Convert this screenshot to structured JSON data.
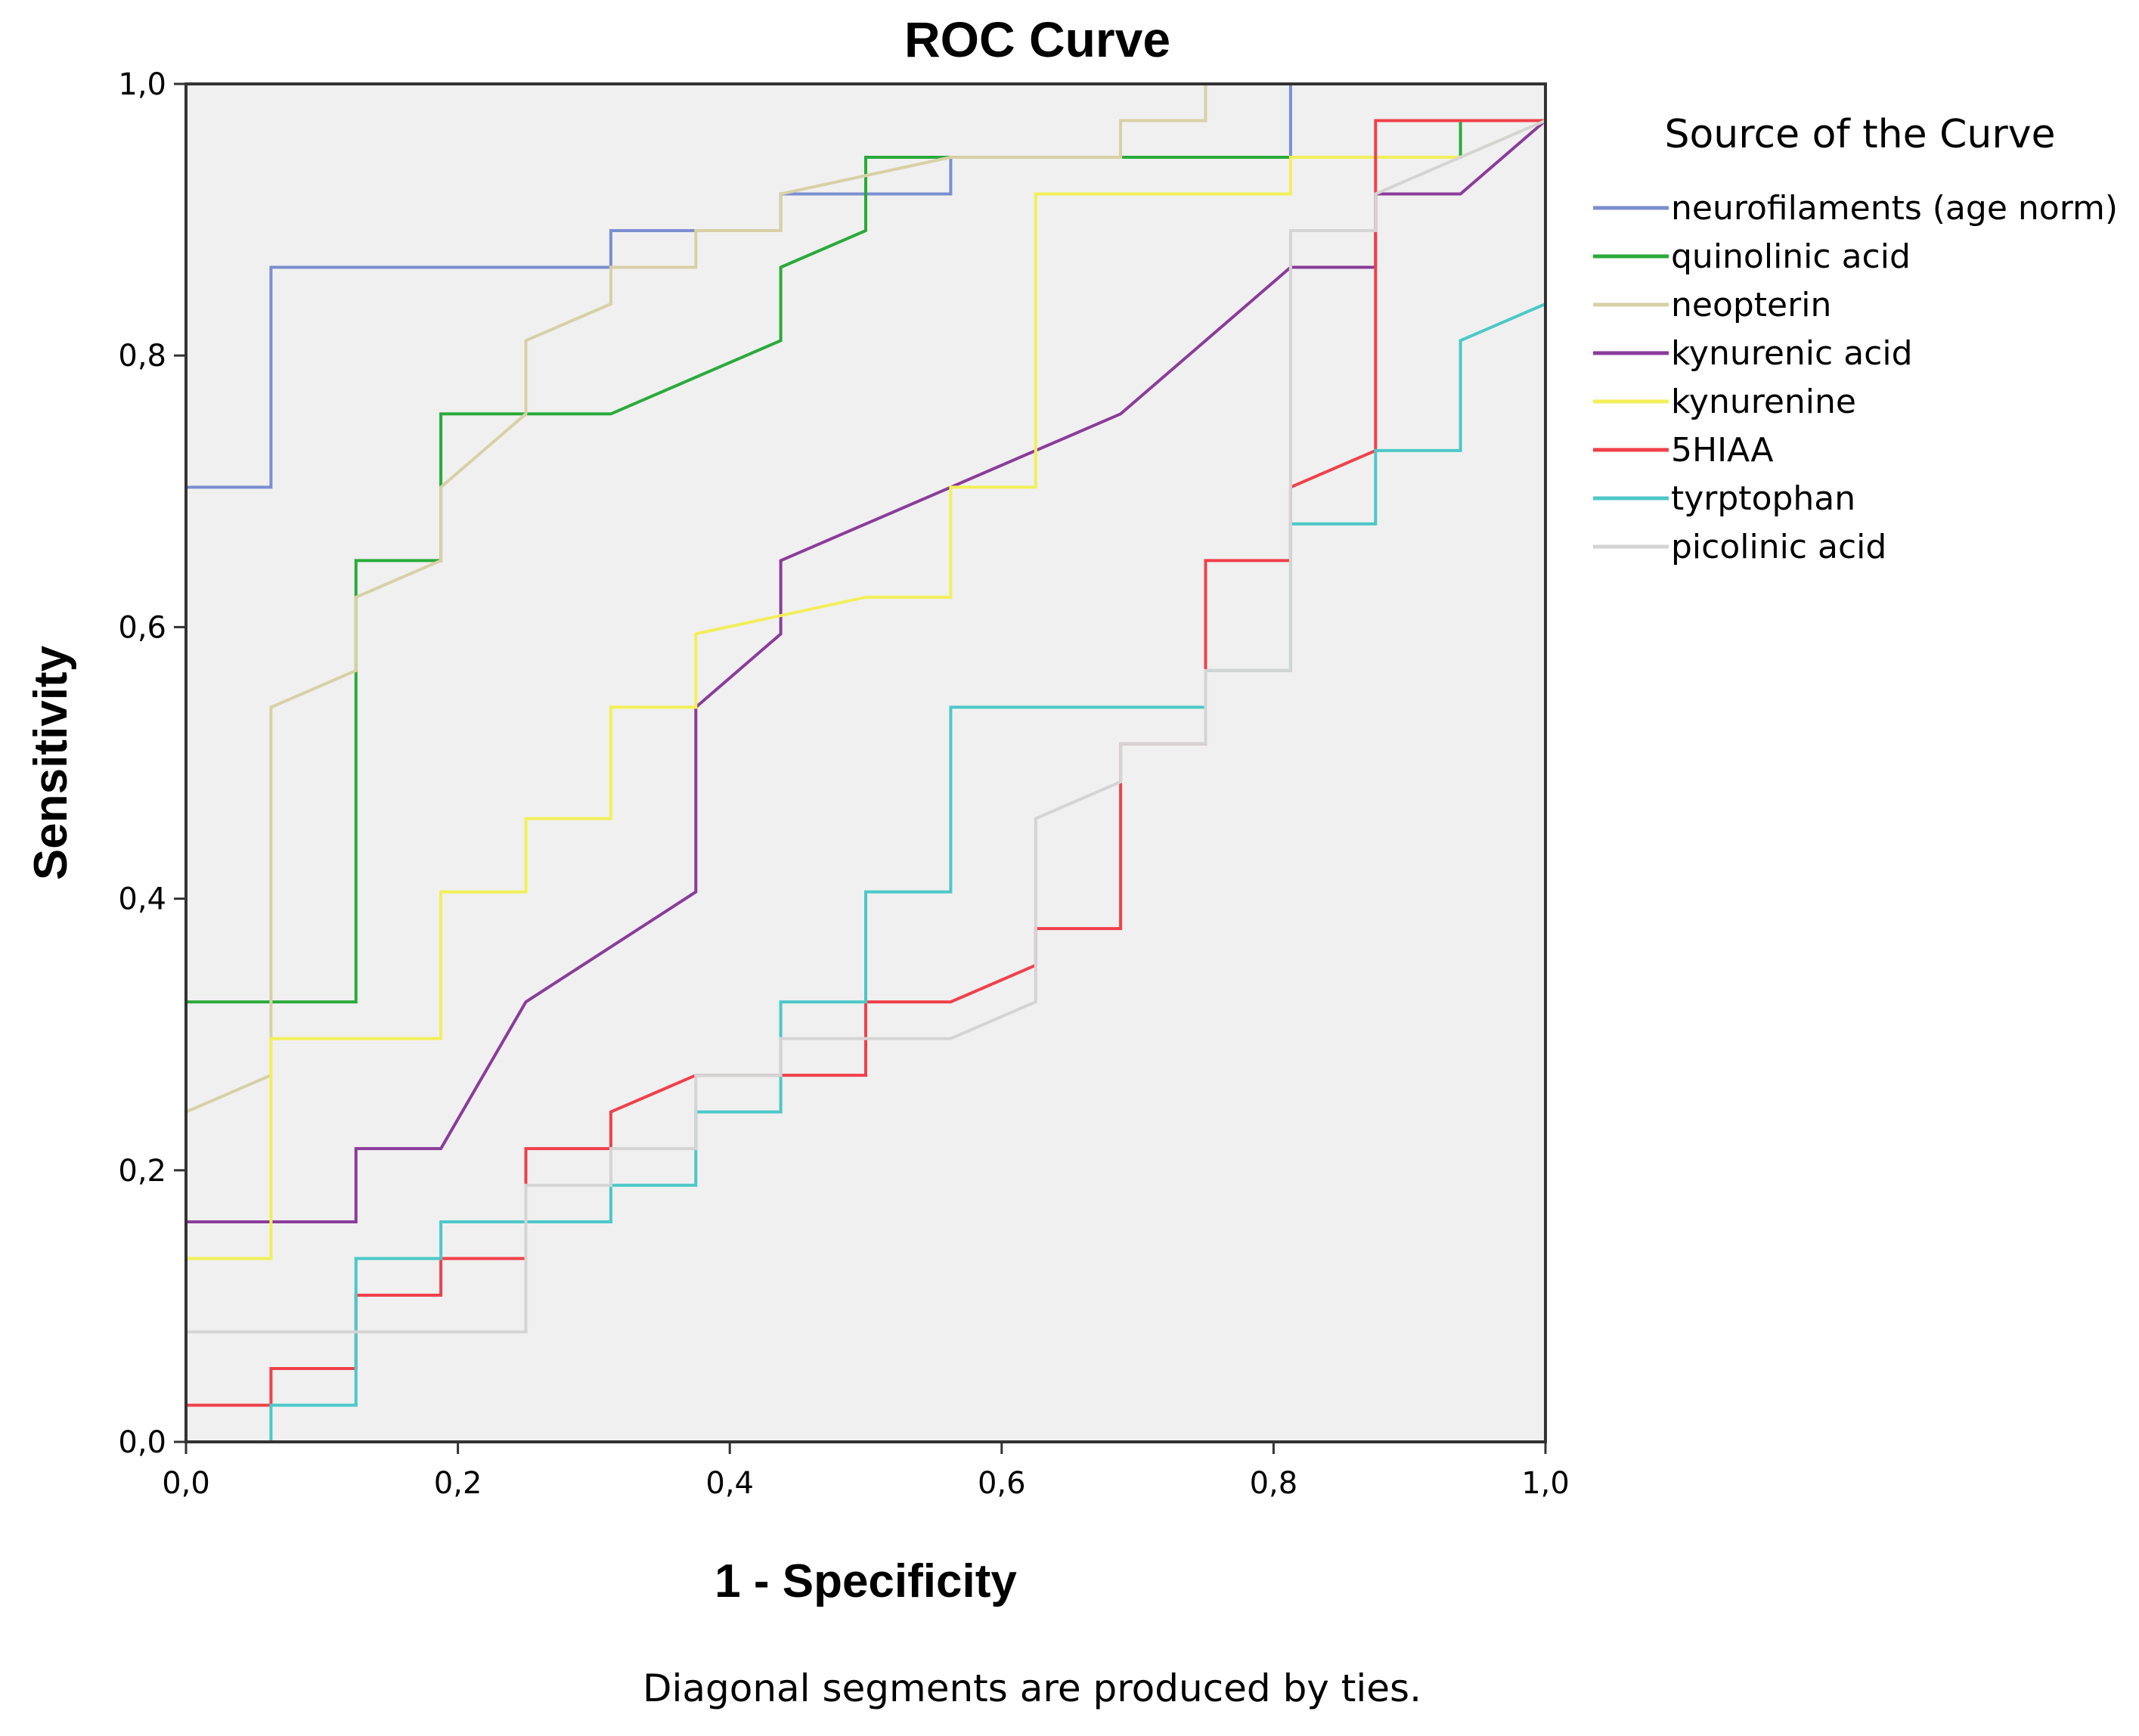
{
  "chart_data": {
    "type": "line",
    "title": "ROC Curve",
    "xlabel": "1 - Specificity",
    "ylabel": "Sensitivity",
    "xlim": [
      0,
      1
    ],
    "ylim": [
      0,
      1
    ],
    "xticks": [
      "0,0",
      "0,2",
      "0,4",
      "0,6",
      "0,8",
      "1,0"
    ],
    "yticks": [
      "0,0",
      "0,2",
      "0,4",
      "0,6",
      "0,8",
      "1,0"
    ],
    "grid": false,
    "legend_title": "Source of the Curve",
    "legend_position": "right",
    "footnote": "Diagonal segments are produced by ties.",
    "series": [
      {
        "name": "neurofilaments (age norm)",
        "color": "#7a8fd0",
        "points": [
          [
            0,
            0
          ],
          [
            0,
            0.703
          ],
          [
            0.0625,
            0.703
          ],
          [
            0.0625,
            0.865
          ],
          [
            0.3125,
            0.865
          ],
          [
            0.3125,
            0.892
          ],
          [
            0.4375,
            0.892
          ],
          [
            0.4375,
            0.919
          ],
          [
            0.5625,
            0.919
          ],
          [
            0.5625,
            0.946
          ],
          [
            0.8125,
            0.946
          ],
          [
            0.8125,
            1
          ],
          [
            1,
            1
          ]
        ]
      },
      {
        "name": "quinolinic acid",
        "color": "#2aaa3a",
        "points": [
          [
            0,
            0
          ],
          [
            0,
            0.324
          ],
          [
            0.125,
            0.324
          ],
          [
            0.125,
            0.649
          ],
          [
            0.1875,
            0.649
          ],
          [
            0.1875,
            0.757
          ],
          [
            0.3125,
            0.757
          ],
          [
            0.4375,
            0.811
          ],
          [
            0.4375,
            0.865
          ],
          [
            0.5,
            0.892
          ],
          [
            0.5,
            0.946
          ],
          [
            0.9375,
            0.946
          ],
          [
            0.9375,
            0.973
          ],
          [
            1,
            0.973
          ],
          [
            1,
            1
          ]
        ]
      },
      {
        "name": "neopterin",
        "color": "#d8d0a6",
        "points": [
          [
            0,
            0
          ],
          [
            0,
            0.243
          ],
          [
            0.0625,
            0.27
          ],
          [
            0.0625,
            0.541
          ],
          [
            0.125,
            0.568
          ],
          [
            0.125,
            0.622
          ],
          [
            0.1875,
            0.649
          ],
          [
            0.1875,
            0.703
          ],
          [
            0.25,
            0.757
          ],
          [
            0.25,
            0.811
          ],
          [
            0.3125,
            0.838
          ],
          [
            0.3125,
            0.865
          ],
          [
            0.375,
            0.865
          ],
          [
            0.375,
            0.892
          ],
          [
            0.4375,
            0.892
          ],
          [
            0.4375,
            0.919
          ],
          [
            0.5625,
            0.946
          ],
          [
            0.6875,
            0.946
          ],
          [
            0.6875,
            0.973
          ],
          [
            0.75,
            0.973
          ],
          [
            0.75,
            1
          ],
          [
            1,
            1
          ]
        ]
      },
      {
        "name": "kynurenic acid",
        "color": "#8a3c9a",
        "points": [
          [
            0,
            0
          ],
          [
            0,
            0.162
          ],
          [
            0.125,
            0.162
          ],
          [
            0.125,
            0.216
          ],
          [
            0.1875,
            0.216
          ],
          [
            0.25,
            0.324
          ],
          [
            0.375,
            0.405
          ],
          [
            0.375,
            0.541
          ],
          [
            0.4375,
            0.595
          ],
          [
            0.4375,
            0.649
          ],
          [
            0.5625,
            0.703
          ],
          [
            0.6875,
            0.757
          ],
          [
            0.8125,
            0.865
          ],
          [
            0.875,
            0.865
          ],
          [
            0.875,
            0.919
          ],
          [
            0.9375,
            0.919
          ],
          [
            1,
            0.973
          ],
          [
            1,
            1
          ]
        ]
      },
      {
        "name": "kynurenine",
        "color": "#f2ef5a",
        "points": [
          [
            0,
            0
          ],
          [
            0,
            0.135
          ],
          [
            0.0625,
            0.135
          ],
          [
            0.0625,
            0.297
          ],
          [
            0.1875,
            0.297
          ],
          [
            0.1875,
            0.405
          ],
          [
            0.25,
            0.405
          ],
          [
            0.25,
            0.459
          ],
          [
            0.3125,
            0.459
          ],
          [
            0.3125,
            0.541
          ],
          [
            0.375,
            0.541
          ],
          [
            0.375,
            0.595
          ],
          [
            0.5,
            0.622
          ],
          [
            0.5625,
            0.622
          ],
          [
            0.5625,
            0.703
          ],
          [
            0.625,
            0.703
          ],
          [
            0.625,
            0.919
          ],
          [
            0.8125,
            0.919
          ],
          [
            0.8125,
            0.946
          ],
          [
            0.9375,
            0.946
          ],
          [
            1,
            0.973
          ],
          [
            1,
            1
          ]
        ]
      },
      {
        "name": "5HIAA",
        "color": "#f0404a",
        "points": [
          [
            0,
            0
          ],
          [
            0,
            0.027
          ],
          [
            0.0625,
            0.027
          ],
          [
            0.0625,
            0.054
          ],
          [
            0.125,
            0.054
          ],
          [
            0.125,
            0.108
          ],
          [
            0.1875,
            0.108
          ],
          [
            0.1875,
            0.135
          ],
          [
            0.25,
            0.135
          ],
          [
            0.25,
            0.216
          ],
          [
            0.3125,
            0.216
          ],
          [
            0.3125,
            0.243
          ],
          [
            0.375,
            0.27
          ],
          [
            0.5,
            0.27
          ],
          [
            0.5,
            0.324
          ],
          [
            0.5625,
            0.324
          ],
          [
            0.625,
            0.351
          ],
          [
            0.625,
            0.378
          ],
          [
            0.6875,
            0.378
          ],
          [
            0.6875,
            0.514
          ],
          [
            0.75,
            0.514
          ],
          [
            0.75,
            0.649
          ],
          [
            0.8125,
            0.649
          ],
          [
            0.8125,
            0.703
          ],
          [
            0.875,
            0.73
          ],
          [
            0.875,
            0.973
          ],
          [
            1,
            0.973
          ],
          [
            1,
            1
          ]
        ]
      },
      {
        "name": "tyrptophan",
        "color": "#4cc8c8",
        "points": [
          [
            0,
            0
          ],
          [
            0.0625,
            0
          ],
          [
            0.0625,
            0.027
          ],
          [
            0.125,
            0.027
          ],
          [
            0.125,
            0.135
          ],
          [
            0.1875,
            0.135
          ],
          [
            0.1875,
            0.162
          ],
          [
            0.3125,
            0.162
          ],
          [
            0.3125,
            0.189
          ],
          [
            0.375,
            0.189
          ],
          [
            0.375,
            0.243
          ],
          [
            0.4375,
            0.243
          ],
          [
            0.4375,
            0.324
          ],
          [
            0.5,
            0.324
          ],
          [
            0.5,
            0.405
          ],
          [
            0.5625,
            0.405
          ],
          [
            0.5625,
            0.541
          ],
          [
            0.75,
            0.541
          ],
          [
            0.75,
            0.568
          ],
          [
            0.8125,
            0.568
          ],
          [
            0.8125,
            0.676
          ],
          [
            0.875,
            0.676
          ],
          [
            0.875,
            0.73
          ],
          [
            0.9375,
            0.73
          ],
          [
            0.9375,
            0.811
          ],
          [
            1,
            0.838
          ],
          [
            1,
            1
          ]
        ]
      },
      {
        "name": "picolinic acid",
        "color": "#d4d4d4",
        "points": [
          [
            0,
            0
          ],
          [
            0,
            0.081
          ],
          [
            0.25,
            0.081
          ],
          [
            0.25,
            0.189
          ],
          [
            0.3125,
            0.189
          ],
          [
            0.3125,
            0.216
          ],
          [
            0.375,
            0.216
          ],
          [
            0.375,
            0.27
          ],
          [
            0.4375,
            0.27
          ],
          [
            0.4375,
            0.297
          ],
          [
            0.5625,
            0.297
          ],
          [
            0.625,
            0.324
          ],
          [
            0.625,
            0.459
          ],
          [
            0.6875,
            0.486
          ],
          [
            0.6875,
            0.514
          ],
          [
            0.75,
            0.514
          ],
          [
            0.75,
            0.568
          ],
          [
            0.8125,
            0.568
          ],
          [
            0.8125,
            0.892
          ],
          [
            0.875,
            0.892
          ],
          [
            0.875,
            0.919
          ],
          [
            0.9375,
            0.946
          ],
          [
            1,
            0.973
          ],
          [
            1,
            1
          ]
        ]
      }
    ]
  }
}
